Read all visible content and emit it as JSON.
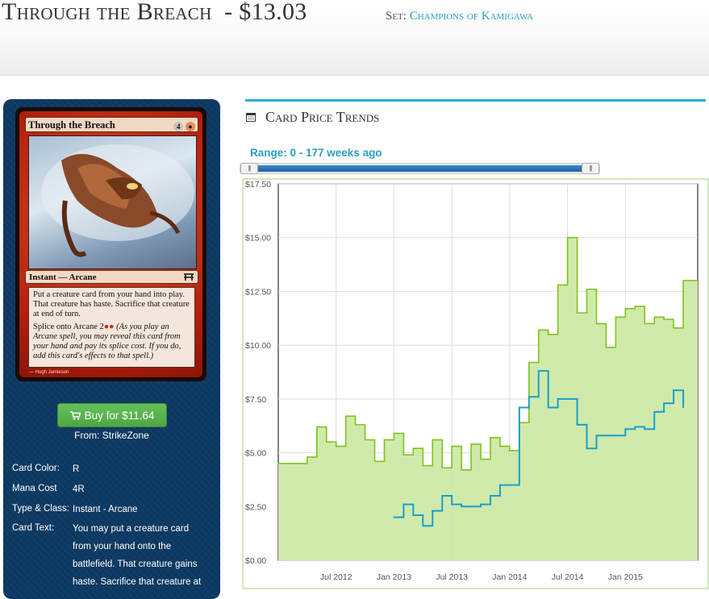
{
  "header": {
    "card_name": "Through the Breach",
    "price": "$13.03",
    "set_prefix": "Set:",
    "set_name": "Champions of Kamigawa"
  },
  "card_image": {
    "name": "Through the Breach",
    "cost_generic": "4",
    "type_line": "Instant — Arcane",
    "text_1": "Put a creature card from your hand into play. That creature has haste. Sacrifice that creature at end of turn.",
    "text_2_prefix": "Splice onto Arcane",
    "text_2_reminder": "(As you play an Arcane spell, you may reveal this card from your hand and pay its splice cost. If you do, add this card's effects to that spell.)",
    "artist": "Hugh Jamieson"
  },
  "purchase": {
    "button_label": "Buy for $11.64",
    "from_label": "From: StrikeZone"
  },
  "details": {
    "card_color_label": "Card Color:",
    "card_color": "R",
    "mana_cost_label": "Mana Cost",
    "mana_cost": "4R",
    "type_label": "Type & Class:",
    "type": "Instant - Arcane",
    "text_label": "Card Text:",
    "text": "You may put a creature card from your hand onto the battlefield. That creature gains haste. Sacrifice that creature at"
  },
  "trends": {
    "title": "Card Price Trends",
    "range_label": "Range: 0 - 177 weeks ago"
  },
  "colors": {
    "accent": "#2aa0c0",
    "sidebar": "#0d3a63",
    "buy_green": "#5cb85c",
    "series_green": "#7fc31c",
    "series_green_fill": "#cbe8a2",
    "series_blue": "#1aa0c8"
  },
  "chart_data": {
    "type": "area",
    "title": "",
    "ylim": [
      0,
      17.5
    ],
    "y_ticks": [
      "$0.00",
      "$2.50",
      "$5.00",
      "$7.50",
      "$10.00",
      "$12.50",
      "$15.00",
      "$17.50"
    ],
    "x_ticks": [
      "Jul 2012",
      "Jan 2013",
      "Jul 2013",
      "Jan 2014",
      "Jul 2014",
      "Jan 2015"
    ],
    "grid": true,
    "series": [
      {
        "style": "area",
        "x": [
          "2012-01",
          "2012-03",
          "2012-04",
          "2012-05",
          "2012-06",
          "2012-07",
          "2012-08",
          "2012-09",
          "2012-10",
          "2012-11",
          "2012-12",
          "2013-01",
          "2013-02",
          "2013-03",
          "2013-04",
          "2013-05",
          "2013-06",
          "2013-07",
          "2013-08",
          "2013-09",
          "2013-10",
          "2013-11",
          "2013-12",
          "2014-01",
          "2014-02",
          "2014-03",
          "2014-04",
          "2014-05",
          "2014-06",
          "2014-07",
          "2014-08",
          "2014-09",
          "2014-10",
          "2014-11",
          "2014-12",
          "2015-01",
          "2015-02",
          "2015-03",
          "2015-04",
          "2015-05",
          "2015-06",
          "2015-07"
        ],
        "values": [
          4.5,
          4.5,
          4.8,
          6.2,
          5.5,
          5.3,
          6.7,
          6.3,
          5.6,
          4.6,
          5.6,
          5.9,
          4.9,
          5.2,
          4.4,
          5.6,
          4.3,
          5.3,
          4.2,
          5.4,
          4.7,
          5.7,
          5.3,
          5.1,
          6.4,
          9.2,
          10.7,
          10.5,
          12.8,
          15.0,
          11.5,
          12.6,
          11.0,
          9.9,
          11.3,
          11.7,
          11.8,
          11.0,
          11.3,
          11.2,
          10.8,
          13.0
        ]
      },
      {
        "style": "line",
        "x": [
          "2013-01",
          "2013-02",
          "2013-03",
          "2013-04",
          "2013-05",
          "2013-06",
          "2013-07",
          "2013-08",
          "2013-09",
          "2013-10",
          "2013-11",
          "2013-12",
          "2014-01",
          "2014-02",
          "2014-03",
          "2014-04",
          "2014-05",
          "2014-06",
          "2014-07",
          "2014-08",
          "2014-09",
          "2014-10",
          "2014-11",
          "2014-12",
          "2015-01",
          "2015-02",
          "2015-03",
          "2015-04",
          "2015-05",
          "2015-06",
          "2015-07"
        ],
        "values": [
          2.0,
          2.6,
          2.1,
          1.6,
          2.3,
          3.0,
          2.6,
          2.5,
          2.5,
          2.6,
          3.0,
          3.5,
          3.5,
          7.1,
          7.6,
          8.8,
          7.1,
          7.5,
          7.5,
          6.3,
          5.2,
          5.8,
          5.8,
          5.8,
          6.1,
          6.2,
          6.1,
          6.9,
          7.3,
          7.9,
          7.1
        ]
      }
    ]
  }
}
